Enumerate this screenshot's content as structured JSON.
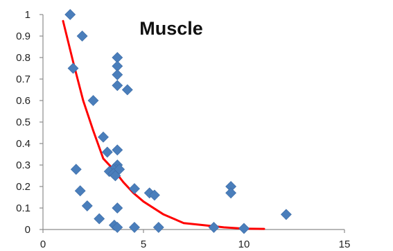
{
  "chart_data": {
    "type": "scatter",
    "title": "Muscle",
    "xlabel": "",
    "ylabel": "",
    "xlim": [
      0,
      15
    ],
    "ylim": [
      0,
      1
    ],
    "x_ticks": [
      0,
      5,
      10,
      15
    ],
    "y_ticks": [
      0,
      0.1,
      0.2,
      0.3,
      0.4,
      0.5,
      0.6,
      0.7,
      0.8,
      0.9,
      1
    ],
    "x_tick_labels": [
      "0",
      "5",
      "10",
      "15"
    ],
    "y_tick_labels": [
      "0",
      "0.1",
      "0.2",
      "0.3",
      "0.4",
      "0.5",
      "0.6",
      "0.7",
      "0.8",
      "0.9",
      "1"
    ],
    "grid": false,
    "legend": "none",
    "series": [
      {
        "type": "scatter",
        "marker": "diamond",
        "color": "#4a7ebb",
        "points": [
          [
            1.35,
            1.0
          ],
          [
            1.95,
            0.9
          ],
          [
            1.5,
            0.75
          ],
          [
            2.5,
            0.6
          ],
          [
            3.7,
            0.8
          ],
          [
            3.7,
            0.76
          ],
          [
            3.7,
            0.72
          ],
          [
            3.7,
            0.67
          ],
          [
            4.2,
            0.65
          ],
          [
            3.0,
            0.43
          ],
          [
            3.7,
            0.37
          ],
          [
            3.2,
            0.36
          ],
          [
            3.7,
            0.3
          ],
          [
            3.65,
            0.28
          ],
          [
            3.5,
            0.28
          ],
          [
            3.8,
            0.28
          ],
          [
            3.3,
            0.27
          ],
          [
            3.5,
            0.26
          ],
          [
            3.6,
            0.25
          ],
          [
            1.65,
            0.28
          ],
          [
            1.85,
            0.18
          ],
          [
            2.2,
            0.11
          ],
          [
            2.8,
            0.05
          ],
          [
            4.55,
            0.19
          ],
          [
            5.3,
            0.17
          ],
          [
            5.55,
            0.16
          ],
          [
            3.7,
            0.1
          ],
          [
            3.55,
            0.02
          ],
          [
            3.7,
            0.01
          ],
          [
            4.55,
            0.01
          ],
          [
            5.75,
            0.01
          ],
          [
            8.5,
            0.01
          ],
          [
            10.0,
            0.005
          ],
          [
            9.35,
            0.2
          ],
          [
            9.35,
            0.17
          ],
          [
            12.1,
            0.07
          ]
        ]
      },
      {
        "type": "line",
        "color": "#ff0000",
        "points": [
          [
            1.0,
            0.97
          ],
          [
            1.5,
            0.78
          ],
          [
            2.0,
            0.6
          ],
          [
            2.5,
            0.46
          ],
          [
            3.0,
            0.33
          ],
          [
            3.5,
            0.28
          ],
          [
            4.0,
            0.22
          ],
          [
            4.5,
            0.17
          ],
          [
            5.0,
            0.13
          ],
          [
            6.0,
            0.07
          ],
          [
            7.0,
            0.03
          ],
          [
            8.0,
            0.02
          ],
          [
            9.0,
            0.01
          ],
          [
            10.0,
            0.004
          ],
          [
            11.0,
            0.003
          ]
        ]
      }
    ]
  }
}
